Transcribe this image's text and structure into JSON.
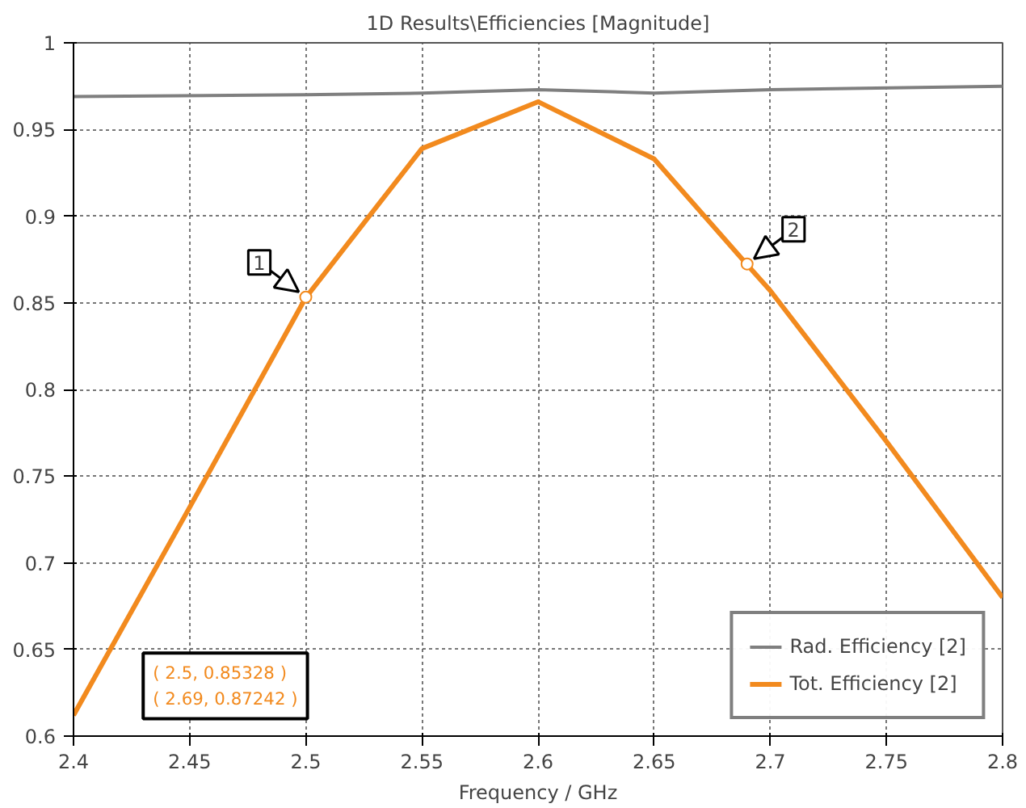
{
  "chart_data": {
    "type": "line",
    "title": "1D Results\\Efficiencies [Magnitude]",
    "xlabel": "Frequency / GHz",
    "series": [
      {
        "name": "Rad. Efficiency [2]",
        "color": "#7f7f7f",
        "x": [
          2.4,
          2.5,
          2.55,
          2.6,
          2.65,
          2.7,
          2.8
        ],
        "values": [
          0.969,
          0.97,
          0.971,
          0.973,
          0.971,
          0.973,
          0.975
        ]
      },
      {
        "name": "Tot. Efficiency [2]",
        "color": "#f28a1e",
        "x": [
          2.4,
          2.45,
          2.5,
          2.55,
          2.6,
          2.65,
          2.69,
          2.7,
          2.75,
          2.8
        ],
        "values": [
          0.612,
          0.732,
          0.853,
          0.939,
          0.966,
          0.933,
          0.872,
          0.857,
          0.77,
          0.68
        ]
      }
    ],
    "xlim": [
      2.4,
      2.8
    ],
    "xticks": [
      2.4,
      2.45,
      2.5,
      2.55,
      2.6,
      2.65,
      2.7,
      2.75,
      2.8
    ],
    "ylim": [
      0.6,
      1
    ],
    "yticks": [
      0.6,
      0.65,
      0.7,
      0.75,
      0.8,
      0.85,
      0.9,
      0.95,
      1
    ],
    "grid": true,
    "legend": "bottom right",
    "annotations": [
      {
        "text": "1",
        "x": 2.5,
        "y": 0.85328
      },
      {
        "text": "2",
        "x": 2.69,
        "y": 0.87242
      },
      "( 2.5, 0.85328 )",
      "( 2.69, 0.87242 )"
    ]
  }
}
